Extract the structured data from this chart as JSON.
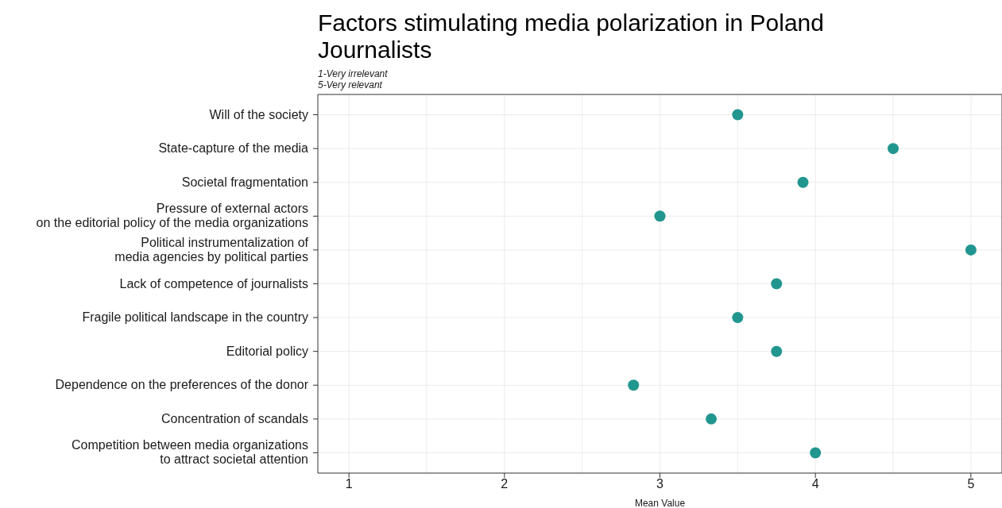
{
  "chart_data": {
    "type": "scatter",
    "title": "Factors stimulating media polarization in Poland\nJournalists",
    "subtitle": "1-Very irrelevant\n5-Very relevant",
    "xlabel": "Mean Value",
    "categories": [
      "Will of the society",
      "State-capture of the media",
      "Societal fragmentation",
      "Pressure of external actors\non the editorial policy of the media organizations",
      "Political instrumentalization of\nmedia agencies by political parties",
      "Lack of competence of journalists",
      "Fragile political landscape in the country",
      "Editorial policy",
      "Dependence on the preferences of the donor",
      "Concentration of scandals",
      "Competition between media organizations\nto attract societal attention"
    ],
    "orientation": "horizontal",
    "values": [
      3.5,
      4.5,
      3.92,
      3.0,
      5.0,
      3.75,
      3.5,
      3.75,
      2.83,
      3.33,
      4.0
    ],
    "color": "#21968f",
    "xlim": [
      0.8,
      5.2
    ],
    "xticks": [
      1,
      2,
      3,
      4,
      5
    ],
    "grid": true,
    "marker": "circle"
  }
}
